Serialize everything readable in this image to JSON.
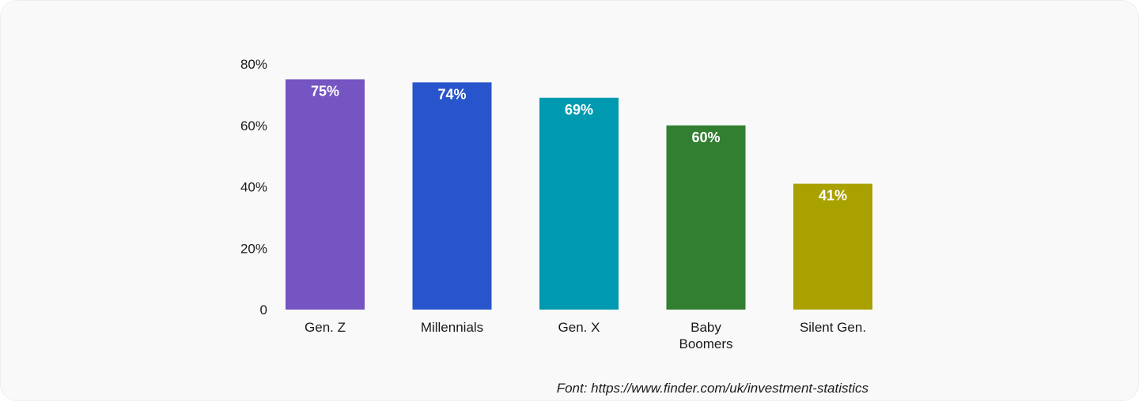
{
  "chart_data": {
    "type": "bar",
    "categories": [
      "Gen. Z",
      "Millennials",
      "Gen. X",
      "Baby Boomers",
      "Silent Gen."
    ],
    "category_lines": [
      [
        "Gen. Z"
      ],
      [
        "Millennials"
      ],
      [
        "Gen. X"
      ],
      [
        "Baby",
        "Boomers"
      ],
      [
        "Silent Gen."
      ]
    ],
    "values": [
      75,
      74,
      69,
      60,
      41
    ],
    "data_labels": [
      "75%",
      "74%",
      "69%",
      "60%",
      "41%"
    ],
    "colors": [
      "#7455c2",
      "#2955cc",
      "#009ab0",
      "#337f31",
      "#a9a100"
    ],
    "ylim": [
      0,
      80
    ],
    "yticks": [
      0,
      20,
      40,
      60,
      80
    ],
    "ytick_labels": [
      "0",
      "20%",
      "40%",
      "60%",
      "80%"
    ],
    "grid": false,
    "legend": "none"
  },
  "source": "Font: https://www.finder.com/uk/investment-statistics"
}
